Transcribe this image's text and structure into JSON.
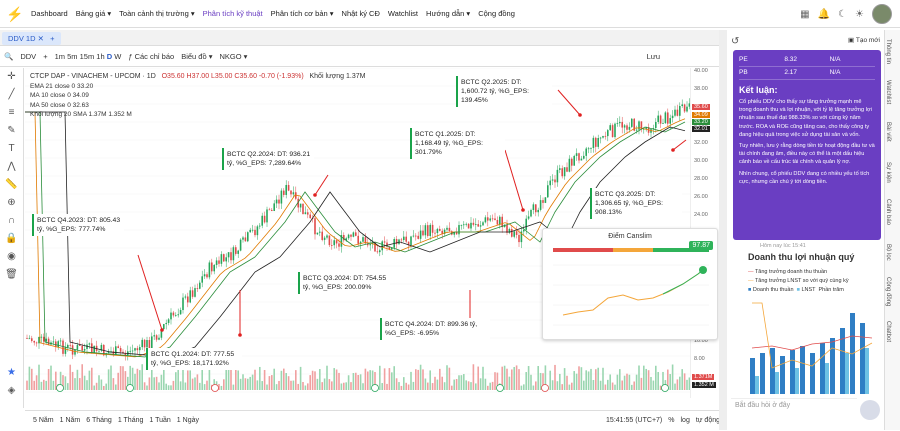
{
  "nav": {
    "items": [
      "Dashboard",
      "Bảng giá",
      "Toàn cảnh thị trường",
      "Phân tích kỹ thuật",
      "Phân tích cơ bản",
      "Nhật ký CĐ",
      "Watchlist",
      "Hướng dẫn",
      "Cộng đồng"
    ],
    "active_index": 3
  },
  "tab": {
    "label": "DDV 1D"
  },
  "toolbar": {
    "symbol": "DDV",
    "timeframes": [
      "1m",
      "5m",
      "15m",
      "1h",
      "D",
      "W"
    ],
    "active_tf": "D",
    "indicators": "Các chỉ báo",
    "chart_type": "Biểu đồ",
    "exchange": "NKGO",
    "save": "Lưu"
  },
  "legend": {
    "title": "CTCP DAP - VINACHEM - UPCOM · 1D",
    "ohlc": "O35.60 H37.00 L35.00 C35.60 -0.70 (-1.93%)",
    "volume": "Khối lượng 1.37M",
    "ema": "EMA 21 close 0  33.20",
    "ma10": "MA 10 close 0  34.09",
    "ma50": "MA 50 close 0  32.63",
    "vol20": "Khối lượng 20 SMA  1.37M  1.352 M"
  },
  "price_axis": [
    "40.00",
    "38.00",
    "36.00",
    "34.00",
    "32.00",
    "30.00",
    "28.00",
    "26.00",
    "24.00",
    "22.00",
    "20.00",
    "18.00",
    "16.00",
    "14.00",
    "12.00",
    "10.00",
    "8.00",
    "6.00"
  ],
  "price_badges": {
    "current": "35.60",
    "ma": "34.09",
    "ema": "33.20",
    "low": "32.01",
    "vol_a": "1.371M",
    "vol_b": "1.352 M"
  },
  "time_axis": [
    "Tháng 10",
    "15",
    "2024",
    "Tháng Năm",
    "Tháng 7",
    "Tháng 9",
    "Tháng 11",
    "2025",
    "Tháng 3",
    "Tháng Năm",
    "Tháng 7",
    "Tháng 11"
  ],
  "annotations": [
    {
      "text": "BCTC Q4.2023: DT: 805.43 tỷ, %G_EPS: 777.74%"
    },
    {
      "text": "BCTC Q1.2024: DT: 777.55 tỷ, %G_EPS: 18,171.92%"
    },
    {
      "text": "BCTC Q2.2024: DT: 936.21 tỷ, %G_EPS: 7,289.64%"
    },
    {
      "text": "BCTC Q3.2024: DT: 754.55 tỷ, %G_EPS: 200.09%"
    },
    {
      "text": "BCTC Q4.2024: DT: 899.36 tỷ, %G_EPS: -6.95%"
    },
    {
      "text": "BCTC Q1.2025: DT: 1,168.49 tỷ, %G_EPS: 301.79%"
    },
    {
      "text": "BCTC Q2.2025: DT: 1,600.72 tỷ, %G_EPS: 139.45%"
    },
    {
      "text": "BCTC Q3.2025: DT: 1,306.65 tỷ, %G_EPS: 908.13%"
    }
  ],
  "canslim": {
    "title": "Điểm Canslim",
    "score": "97.87"
  },
  "bottom": {
    "ranges": [
      "5 Năm",
      "1 Năm",
      "6 Tháng",
      "1 Tháng",
      "1 Tuần",
      "1 Ngày"
    ],
    "time": "15:41:55 (UTC+7)",
    "pct": "%",
    "log": "log",
    "auto": "tự động"
  },
  "right_panel": {
    "new_label": "Tạo mới",
    "table": [
      {
        "k": "PE",
        "v": "8.32",
        "n": "N/A"
      },
      {
        "k": "PB",
        "v": "2.17",
        "n": "N/A"
      }
    ],
    "conclusion_title": "Kết luận:",
    "p1": "Cổ phiếu DDV cho thấy sự tăng trưởng mạnh mẽ trong doanh thu và lợi nhuận, với tỷ lệ tăng trưởng lợi nhuận sau thuế đạt 988.33% so với cùng kỳ năm trước. ROA và ROE cũng tăng cao, cho thấy công ty đang hiệu quả trong việc sử dụng tài sản và vốn.",
    "p2": "Tuy nhiên, lưu ý rằng dòng tiền từ hoạt động đầu tư và tài chính đang âm, điều này có thể là một dấu hiệu cảnh báo về cấu trúc tài chính và quản lý nợ.",
    "p3": "Nhìn chung, cổ phiếu DDV đang có nhiều yếu tố tích cực, nhưng cần chú ý tới dòng tiền.",
    "time": "Hôm nay lúc 15:41",
    "chart_title": "Doanh thu lợi nhuận quý",
    "legend1": "Tăng trưởng doanh thu thuần",
    "legend2": "Tăng trưởng LNST so với quý cùng kỳ",
    "legend3": "Doanh thu thuần",
    "legend4": "LNST",
    "legend5": "Phần trăm",
    "input_placeholder": "Bắt đầu hỏi ở đây"
  },
  "vtabs": [
    "Thông tin",
    "Watchlist",
    "Bài viết",
    "Sự kiện",
    "Cảnh báo",
    "Bộ lọc",
    "Cộng đồng",
    "Chatbot"
  ]
}
